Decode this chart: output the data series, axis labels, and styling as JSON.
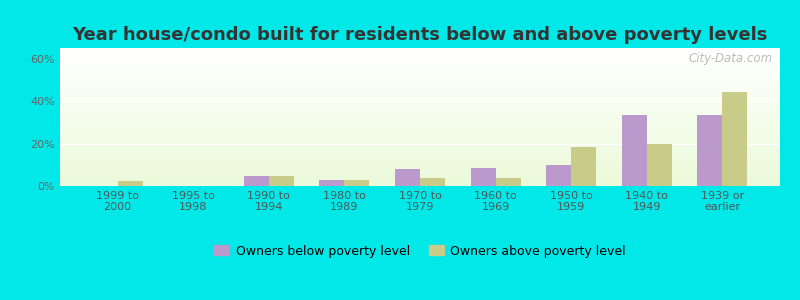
{
  "title": "Year house/condo built for residents below and above poverty levels",
  "categories": [
    "1999 to\n2000",
    "1995 to\n1998",
    "1990 to\n1994",
    "1980 to\n1989",
    "1970 to\n1979",
    "1960 to\n1969",
    "1950 to\n1959",
    "1940 to\n1949",
    "1939 or\nearlier"
  ],
  "below_poverty": [
    0.0,
    0.0,
    4.5,
    3.0,
    8.0,
    8.5,
    10.0,
    33.5,
    33.5
  ],
  "above_poverty": [
    2.5,
    0.0,
    4.5,
    3.0,
    4.0,
    4.0,
    18.5,
    20.0,
    44.5
  ],
  "below_color": "#bb99cc",
  "above_color": "#c8cc88",
  "yticks": [
    0,
    20,
    40,
    60
  ],
  "ylim": [
    0,
    65
  ],
  "outer_bg": "#00e8e8",
  "legend_below": "Owners below poverty level",
  "legend_above": "Owners above poverty level",
  "title_fontsize": 13,
  "tick_fontsize": 8,
  "legend_fontsize": 9,
  "bar_width": 0.33,
  "watermark": "City-Data.com"
}
